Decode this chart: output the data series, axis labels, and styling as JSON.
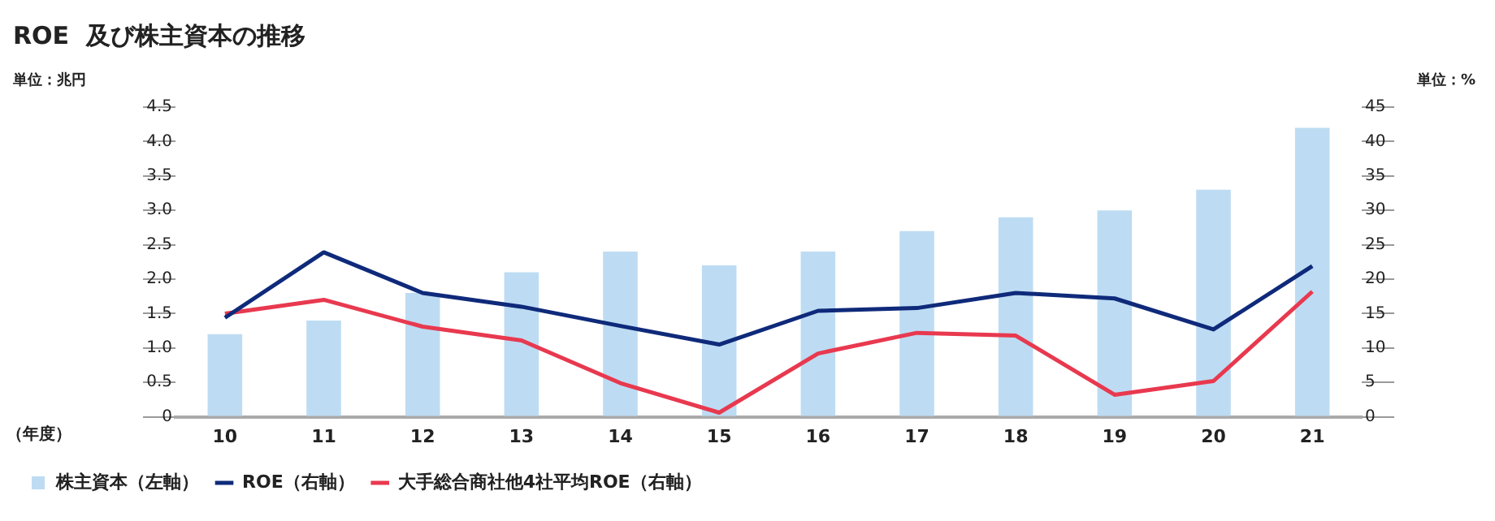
{
  "chart_data": {
    "type": "bar",
    "title": "ROE  及び株主資本の推移",
    "xlabel": "（年度）",
    "ylabel": "単位：兆円",
    "y2label": "単位：%",
    "categories": [
      "10",
      "11",
      "12",
      "13",
      "14",
      "15",
      "16",
      "17",
      "18",
      "19",
      "20",
      "21"
    ],
    "series": [
      {
        "name": "株主資本（左軸）",
        "color": "#bddcf3",
        "values": [
          1.2,
          1.4,
          1.8,
          2.1,
          2.4,
          2.2,
          2.4,
          2.7,
          2.9,
          3.0,
          3.3,
          4.2
        ]
      },
      {
        "name": "ROE（右軸）",
        "type": "line",
        "axis": "y2",
        "color": "#0f2a7a",
        "values": [
          14.4,
          23.9,
          18.0,
          16.0,
          13.2,
          10.5,
          15.4,
          15.8,
          18.0,
          17.2,
          12.7,
          21.9
        ]
      },
      {
        "name": "大手総合商社他4社平均ROE（右軸）",
        "type": "line",
        "axis": "y2",
        "color": "#e8394f",
        "values": [
          15.0,
          17.0,
          13.1,
          11.1,
          4.9,
          0.6,
          9.2,
          12.2,
          11.8,
          3.2,
          5.2,
          18.2
        ]
      }
    ],
    "ylim": [
      0,
      4.5
    ],
    "yticks": [
      0,
      0.5,
      {
        "value": 1,
        "label": "1.0"
      },
      1.5,
      {
        "value": 2,
        "label": "2.0"
      },
      2.5,
      {
        "value": 3,
        "label": "3.0"
      },
      3.5,
      {
        "value": 4,
        "label": "4.0"
      },
      4.5
    ],
    "y2lim": [
      0,
      45
    ],
    "y2ticks": [
      0,
      5,
      10,
      15,
      20,
      25,
      30,
      35,
      40,
      45
    ],
    "grid": false,
    "legend": "bottom left",
    "marker": "none",
    "line_style": "solid"
  }
}
